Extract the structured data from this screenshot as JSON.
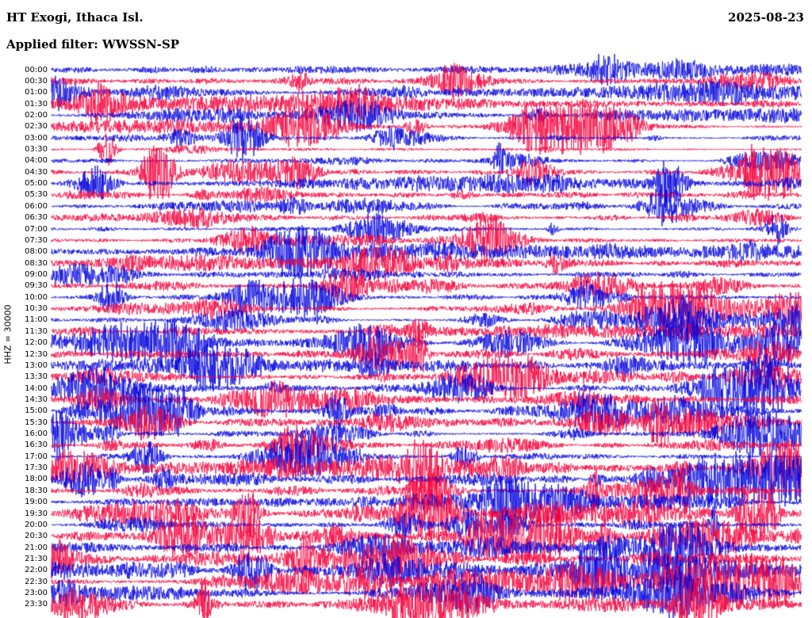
{
  "header": {
    "station": "HT Exogi, Ithaca Isl.",
    "date": "2025-08-23",
    "filter_line": "Applied filter: WWSSN-SP"
  },
  "left_axis": {
    "label": "HHZ = 30000"
  },
  "colors": {
    "trace_blue": "#0000dd",
    "trace_red": "#f4003c",
    "text": "#000000",
    "background": "#ffffff"
  },
  "chart_data": {
    "type": "line",
    "subtype": "helicorder-seismogram",
    "title": "HT Exogi, Ithaca Isl.",
    "date": "2025-08-23",
    "applied_filter": "WWSSN-SP",
    "channel": "HHZ",
    "amplitude_scale": 30000,
    "rows": 48,
    "minutes_per_row": 30,
    "x_range_minutes": [
      0,
      30
    ],
    "legend_position": "none",
    "grid": "off",
    "trace_color_pattern": [
      "blue",
      "red"
    ],
    "categories": [
      "00:00",
      "00:30",
      "01:00",
      "01:30",
      "02:00",
      "02:30",
      "03:00",
      "03:30",
      "04:00",
      "04:30",
      "05:00",
      "05:30",
      "06:00",
      "06:30",
      "07:00",
      "07:30",
      "08:00",
      "08:30",
      "09:00",
      "09:30",
      "10:00",
      "10:30",
      "11:00",
      "11:30",
      "12:00",
      "12:30",
      "13:00",
      "13:30",
      "14:00",
      "14:30",
      "15:00",
      "15:30",
      "16:00",
      "16:30",
      "17:00",
      "17:30",
      "18:00",
      "18:30",
      "19:00",
      "19:30",
      "20:00",
      "20:30",
      "21:00",
      "21:30",
      "22:00",
      "22:30",
      "23:00",
      "23:30"
    ],
    "note": "Continuous seismic waveform drum plot; one 30-minute trace per row, colors alternating blue/red per row; amplitudes unlabeled, activity increases through the day with numerous burst events."
  }
}
